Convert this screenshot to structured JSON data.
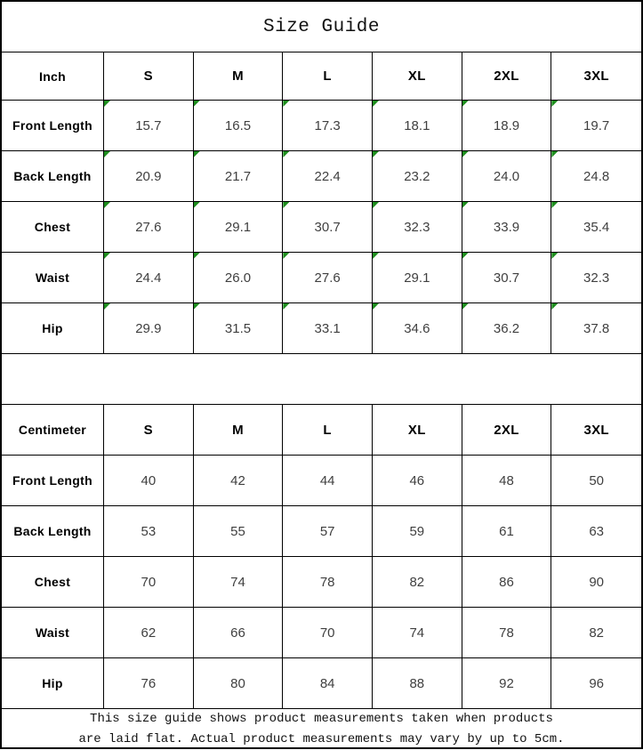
{
  "page": {
    "title": "Size Guide",
    "footer_lines": [
      "This size guide shows product measurements taken when products",
      "are laid flat. Actual product measurements may vary by up to 5cm."
    ]
  },
  "colors": {
    "border": "#000000",
    "header_text": "#000000",
    "value_text": "#3f3f3f",
    "flag_green": "#1e8e1e"
  },
  "icons": {
    "cell_flag": "corner-flag-icon"
  },
  "tables": [
    {
      "unit_label": "Inch",
      "sizes": [
        "S",
        "M",
        "L",
        "XL",
        "2XL",
        "3XL"
      ],
      "show_cell_flags": true,
      "rows": [
        {
          "label": "Front Length",
          "values": [
            "15.7",
            "16.5",
            "17.3",
            "18.1",
            "18.9",
            "19.7"
          ]
        },
        {
          "label": "Back Length",
          "values": [
            "20.9",
            "21.7",
            "22.4",
            "23.2",
            "24.0",
            "24.8"
          ]
        },
        {
          "label": "Chest",
          "values": [
            "27.6",
            "29.1",
            "30.7",
            "32.3",
            "33.9",
            "35.4"
          ]
        },
        {
          "label": "Waist",
          "values": [
            "24.4",
            "26.0",
            "27.6",
            "29.1",
            "30.7",
            "32.3"
          ]
        },
        {
          "label": "Hip",
          "values": [
            "29.9",
            "31.5",
            "33.1",
            "34.6",
            "36.2",
            "37.8"
          ]
        }
      ]
    },
    {
      "unit_label": "Centimeter",
      "sizes": [
        "S",
        "M",
        "L",
        "XL",
        "2XL",
        "3XL"
      ],
      "show_cell_flags": false,
      "rows": [
        {
          "label": "Front Length",
          "values": [
            "40",
            "42",
            "44",
            "46",
            "48",
            "50"
          ]
        },
        {
          "label": "Back Length",
          "values": [
            "53",
            "55",
            "57",
            "59",
            "61",
            "63"
          ]
        },
        {
          "label": "Chest",
          "values": [
            "70",
            "74",
            "78",
            "82",
            "86",
            "90"
          ]
        },
        {
          "label": "Waist",
          "values": [
            "62",
            "66",
            "70",
            "74",
            "78",
            "82"
          ]
        },
        {
          "label": "Hip",
          "values": [
            "76",
            "80",
            "84",
            "88",
            "92",
            "96"
          ]
        }
      ]
    }
  ]
}
